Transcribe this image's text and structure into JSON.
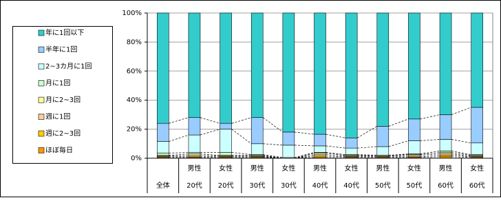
{
  "chart_data": {
    "type": "stacked_bar",
    "categories": [
      "全体",
      "20代",
      "20代",
      "30代",
      "30代",
      "40代",
      "40代",
      "50代",
      "50代",
      "60代",
      "60代"
    ],
    "category_groups": [
      null,
      "男性",
      "女性",
      "男性",
      "女性",
      "男性",
      "女性",
      "男性",
      "女性",
      "男性",
      "女性"
    ],
    "series": [
      {
        "name": "ほぼ毎日",
        "color": "#ff9900",
        "values": [
          0.5,
          0.5,
          0.5,
          0.5,
          0,
          0.5,
          0.5,
          0.5,
          0.5,
          1,
          0.5
        ]
      },
      {
        "name": "週に2~3回",
        "color": "#ffcc00",
        "values": [
          0.5,
          0.5,
          0.5,
          0.5,
          0,
          1,
          0.5,
          0.5,
          0.5,
          1,
          0.5
        ]
      },
      {
        "name": "週に1回",
        "color": "#ffcc99",
        "values": [
          0.5,
          1,
          0.5,
          0.5,
          0,
          1,
          0.5,
          0.5,
          1,
          1,
          0.5
        ]
      },
      {
        "name": "月に2~3回",
        "color": "#ffff99",
        "values": [
          0.5,
          1,
          0.5,
          0.5,
          0,
          1,
          0.5,
          0.5,
          0.5,
          1,
          0.5
        ]
      },
      {
        "name": "月に1回",
        "color": "#ccffcc",
        "values": [
          1.5,
          1,
          2,
          0.5,
          0.5,
          0.5,
          0.5,
          0,
          0.5,
          1,
          0.5
        ]
      },
      {
        "name": "2~3カ月に1回",
        "color": "#ccffff",
        "values": [
          8,
          12,
          16,
          7.5,
          8.5,
          4.5,
          4.5,
          6,
          9,
          8,
          8
        ]
      },
      {
        "name": "半年に1回",
        "color": "#99ccff",
        "values": [
          12.5,
          12,
          4,
          18,
          9,
          8,
          7,
          14,
          15,
          17,
          24.5
        ]
      },
      {
        "name": "年に1回以下",
        "color": "#33cccc",
        "values": [
          76,
          72,
          76,
          72,
          82,
          83.5,
          86,
          78,
          73,
          70,
          65
        ]
      }
    ],
    "ylim": [
      0,
      100
    ],
    "yticks": [
      {
        "value": 0,
        "label": "0%"
      },
      {
        "value": 20,
        "label": "20%"
      },
      {
        "value": 40,
        "label": "40%"
      },
      {
        "value": 60,
        "label": "60%"
      },
      {
        "value": 80,
        "label": "80%"
      },
      {
        "value": 100,
        "label": "100%"
      }
    ],
    "grid": true
  }
}
